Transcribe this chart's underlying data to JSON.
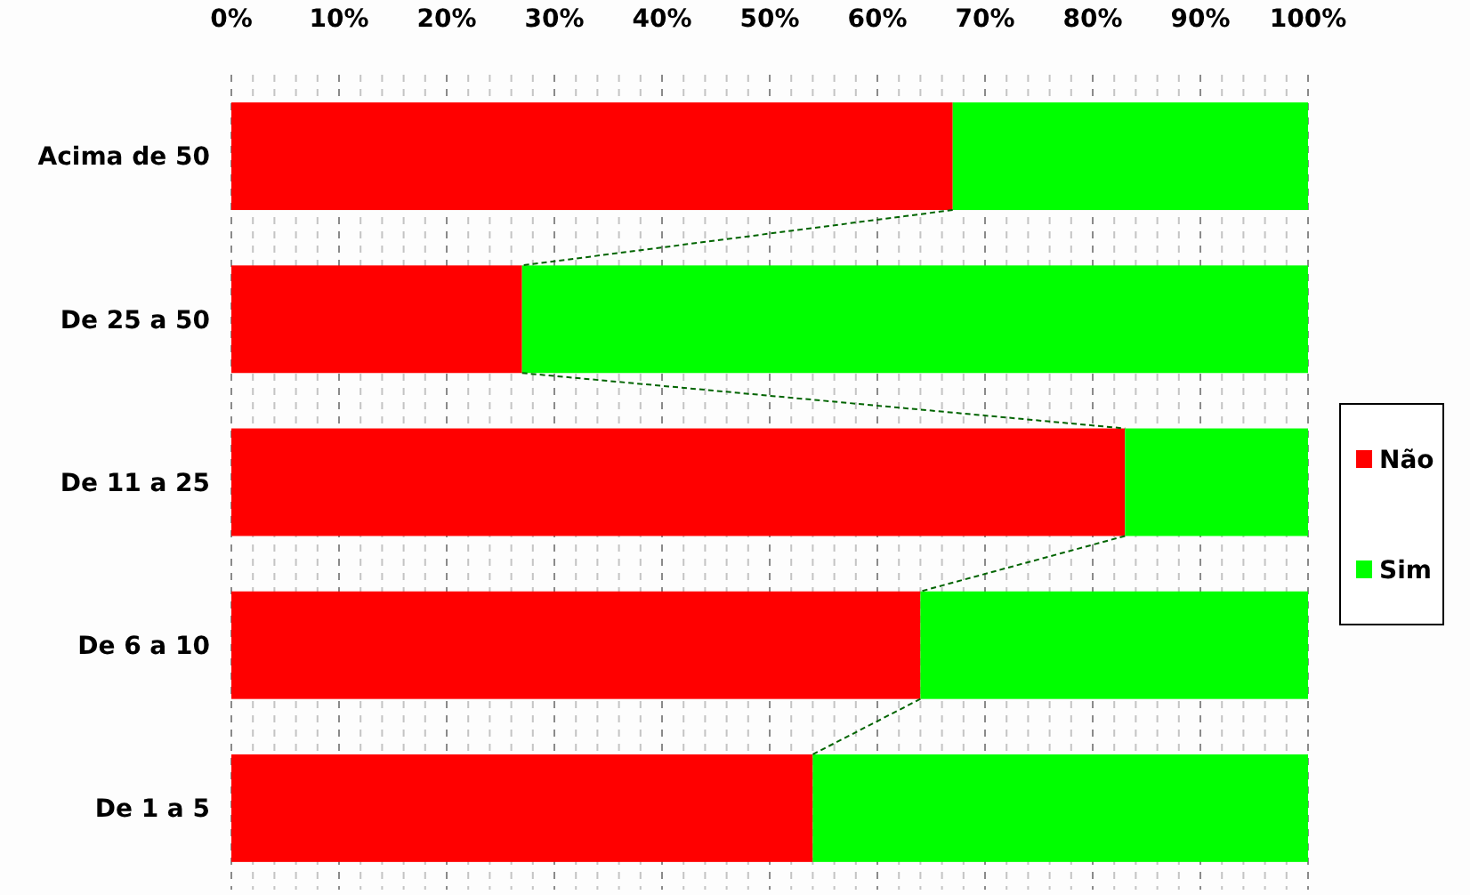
{
  "chart_data": {
    "type": "bar",
    "orientation": "horizontal",
    "stacked": true,
    "categories": [
      "Acima de 50",
      "De 25 a 50",
      "De 11 a 25",
      "De 6 a 10",
      "De 1 a 5"
    ],
    "series": [
      {
        "name": "Não",
        "color": "#ff0000",
        "values": [
          67,
          27,
          83,
          64,
          54
        ]
      },
      {
        "name": "Sim",
        "color": "#00ff00",
        "values": [
          33,
          73,
          17,
          36,
          46
        ]
      }
    ],
    "xlim": [
      0,
      100
    ],
    "xticks": [
      {
        "value": 0,
        "label": "0%"
      },
      {
        "value": 2,
        "label": null
      },
      {
        "value": 4,
        "label": null
      },
      {
        "value": 6,
        "label": null
      },
      {
        "value": 8,
        "label": null
      },
      {
        "value": 10,
        "label": "10%"
      },
      {
        "value": 12,
        "label": null
      },
      {
        "value": 14,
        "label": null
      },
      {
        "value": 16,
        "label": null
      },
      {
        "value": 18,
        "label": null
      },
      {
        "value": 20,
        "label": "20%"
      },
      {
        "value": 22,
        "label": null
      },
      {
        "value": 24,
        "label": null
      },
      {
        "value": 26,
        "label": null
      },
      {
        "value": 28,
        "label": null
      },
      {
        "value": 30,
        "label": "30%"
      },
      {
        "value": 32,
        "label": null
      },
      {
        "value": 34,
        "label": null
      },
      {
        "value": 36,
        "label": null
      },
      {
        "value": 38,
        "label": null
      },
      {
        "value": 40,
        "label": "40%"
      },
      {
        "value": 42,
        "label": null
      },
      {
        "value": 44,
        "label": null
      },
      {
        "value": 46,
        "label": null
      },
      {
        "value": 48,
        "label": null
      },
      {
        "value": 50,
        "label": "50%"
      },
      {
        "value": 52,
        "label": null
      },
      {
        "value": 54,
        "label": null
      },
      {
        "value": 56,
        "label": null
      },
      {
        "value": 58,
        "label": null
      },
      {
        "value": 60,
        "label": "60%"
      },
      {
        "value": 62,
        "label": null
      },
      {
        "value": 64,
        "label": null
      },
      {
        "value": 66,
        "label": null
      },
      {
        "value": 68,
        "label": null
      },
      {
        "value": 70,
        "label": "70%"
      },
      {
        "value": 72,
        "label": null
      },
      {
        "value": 74,
        "label": null
      },
      {
        "value": 76,
        "label": null
      },
      {
        "value": 78,
        "label": null
      },
      {
        "value": 80,
        "label": "80%"
      },
      {
        "value": 82,
        "label": null
      },
      {
        "value": 84,
        "label": null
      },
      {
        "value": 86,
        "label": null
      },
      {
        "value": 88,
        "label": null
      },
      {
        "value": 90,
        "label": "90%"
      },
      {
        "value": 92,
        "label": null
      },
      {
        "value": 94,
        "label": null
      },
      {
        "value": 96,
        "label": null
      },
      {
        "value": 98,
        "label": null
      },
      {
        "value": 100,
        "label": "100%"
      }
    ],
    "grid": "x",
    "legend": "right"
  }
}
